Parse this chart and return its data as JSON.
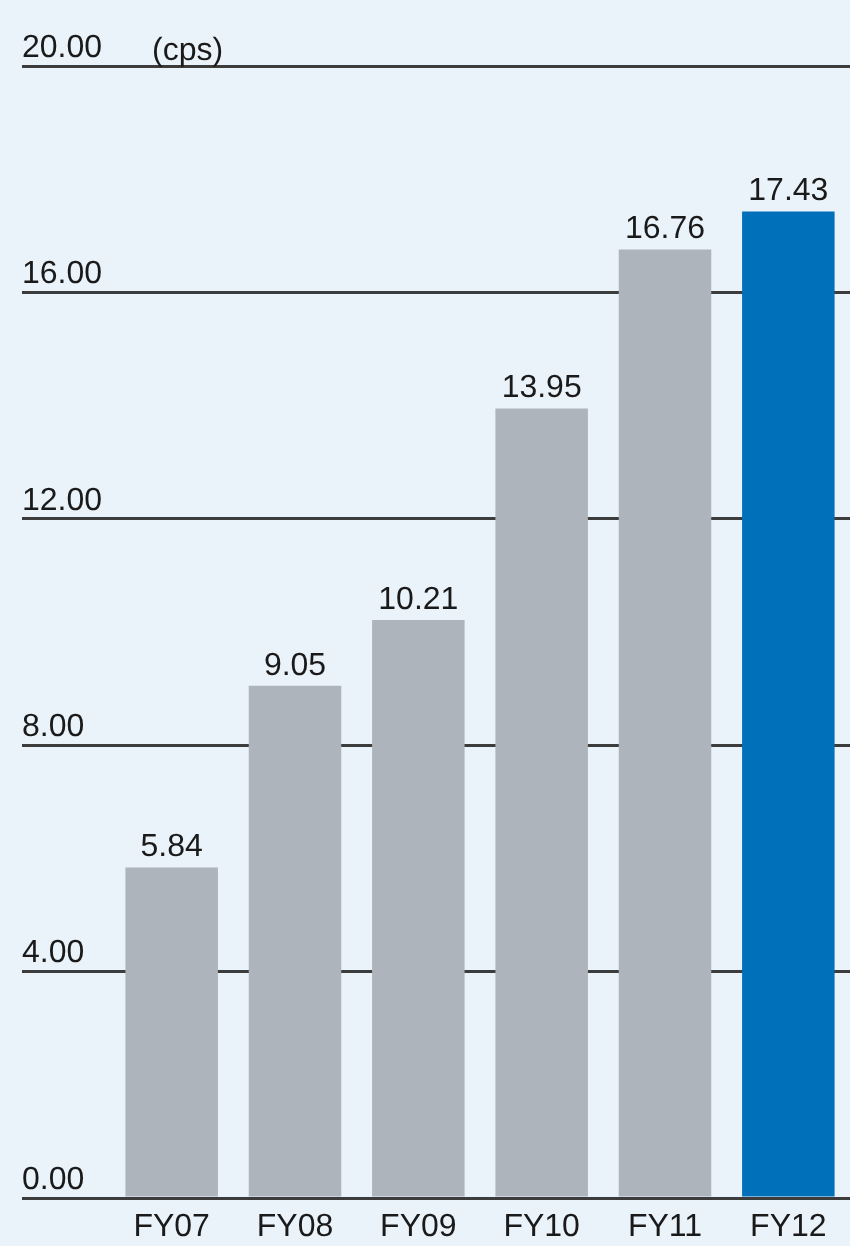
{
  "chart_data": {
    "type": "bar",
    "ylabel": "(cps)",
    "categories": [
      "FY07",
      "FY08",
      "FY09",
      "FY10",
      "FY11",
      "FY12"
    ],
    "values": [
      5.84,
      9.05,
      10.21,
      13.95,
      16.76,
      17.43
    ],
    "colors": [
      "#adb4bb",
      "#adb4bb",
      "#adb4bb",
      "#adb4bb",
      "#adb4bb",
      "#0070bb"
    ],
    "ylim": [
      0,
      20
    ],
    "yticks": [
      {
        "value": 0,
        "label": "0.00"
      },
      {
        "value": 4,
        "label": "4.00"
      },
      {
        "value": 8,
        "label": "8.00"
      },
      {
        "value": 12,
        "label": "12.00"
      },
      {
        "value": 16,
        "label": "16.00"
      },
      {
        "value": 20,
        "label": "20.00"
      }
    ],
    "grid": "y",
    "data_labels": true
  }
}
